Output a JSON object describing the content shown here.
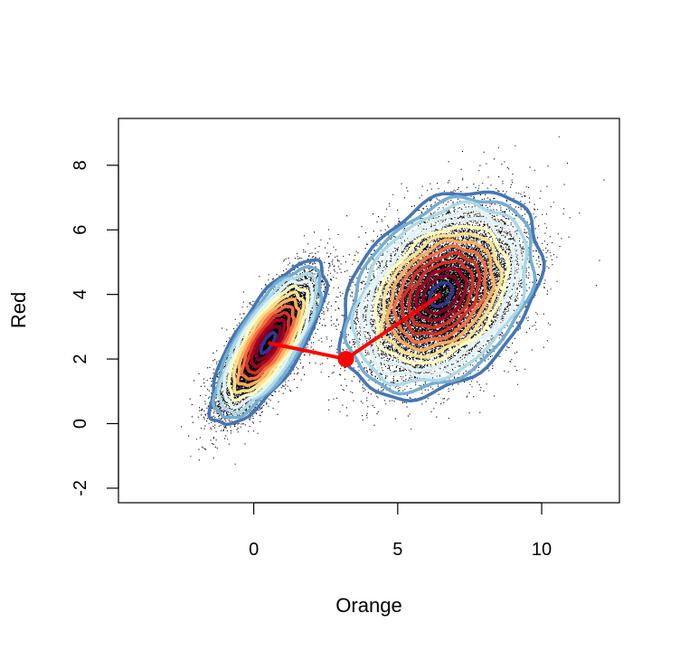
{
  "chart_data": {
    "type": "scatter",
    "title": "",
    "xlabel": "Orange",
    "ylabel": "Red",
    "xlim": [
      -4.7,
      12.7
    ],
    "ylim": [
      -2.45,
      9.45
    ],
    "x_ticks": [
      "0",
      "5",
      "10"
    ],
    "y_ticks": [
      "-2",
      "0",
      "2",
      "4",
      "6",
      "8"
    ],
    "grid": false,
    "legend": "none",
    "point_color": "#000000",
    "clusters": [
      {
        "center": [
          0.5,
          2.5
        ],
        "sd": [
          0.75,
          0.95
        ],
        "rho": 0.75,
        "contour_levels": 12,
        "points_shown_approx": 14000
      },
      {
        "center": [
          6.5,
          4.0
        ],
        "sd": [
          1.3,
          1.2
        ],
        "rho": 0.35,
        "contour_levels": 14,
        "points_shown_approx": 16000
      }
    ],
    "path": {
      "color": "#ff0000",
      "points": [
        [
          0.5,
          2.5
        ],
        [
          3.2,
          2.0
        ],
        [
          6.5,
          4.0
        ]
      ],
      "marker_point": [
        3.2,
        2.0
      ]
    },
    "contour_palette": [
      "#313695",
      "#4575b4",
      "#74add1",
      "#abd9e9",
      "#e0f3f8",
      "#ffffbf",
      "#fee090",
      "#fdae61",
      "#f46d43",
      "#d73027",
      "#a50026",
      "#7f0020"
    ]
  }
}
